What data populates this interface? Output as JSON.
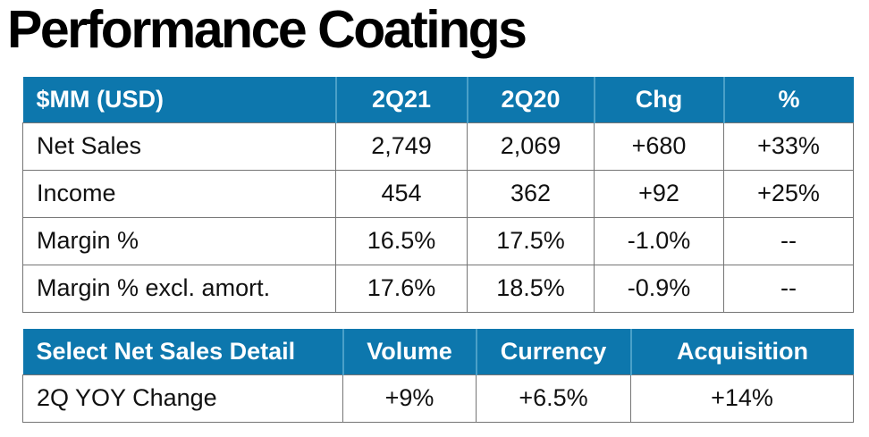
{
  "title": "Performance Coatings",
  "table1": {
    "headers": [
      "$MM (USD)",
      "2Q21",
      "2Q20",
      "Chg",
      "%"
    ],
    "rows": [
      [
        "Net Sales",
        "2,749",
        "2,069",
        "+680",
        "+33%"
      ],
      [
        "Income",
        "454",
        "362",
        "+92",
        "+25%"
      ],
      [
        "Margin %",
        "16.5%",
        "17.5%",
        "-1.0%",
        "--"
      ],
      [
        "Margin % excl. amort.",
        "17.6%",
        "18.5%",
        "-0.9%",
        "--"
      ]
    ]
  },
  "table2": {
    "headers": [
      "Select Net Sales Detail",
      "Volume",
      "Currency",
      "Acquisition"
    ],
    "rows": [
      [
        "2Q YOY Change",
        "+9%",
        "+6.5%",
        "+14%"
      ]
    ]
  },
  "colors": {
    "header_bg": "#0d77ad",
    "header_divider": "#4aa0c8",
    "header_text": "#ffffff",
    "body_border": "#757575",
    "body_text": "#111111"
  }
}
